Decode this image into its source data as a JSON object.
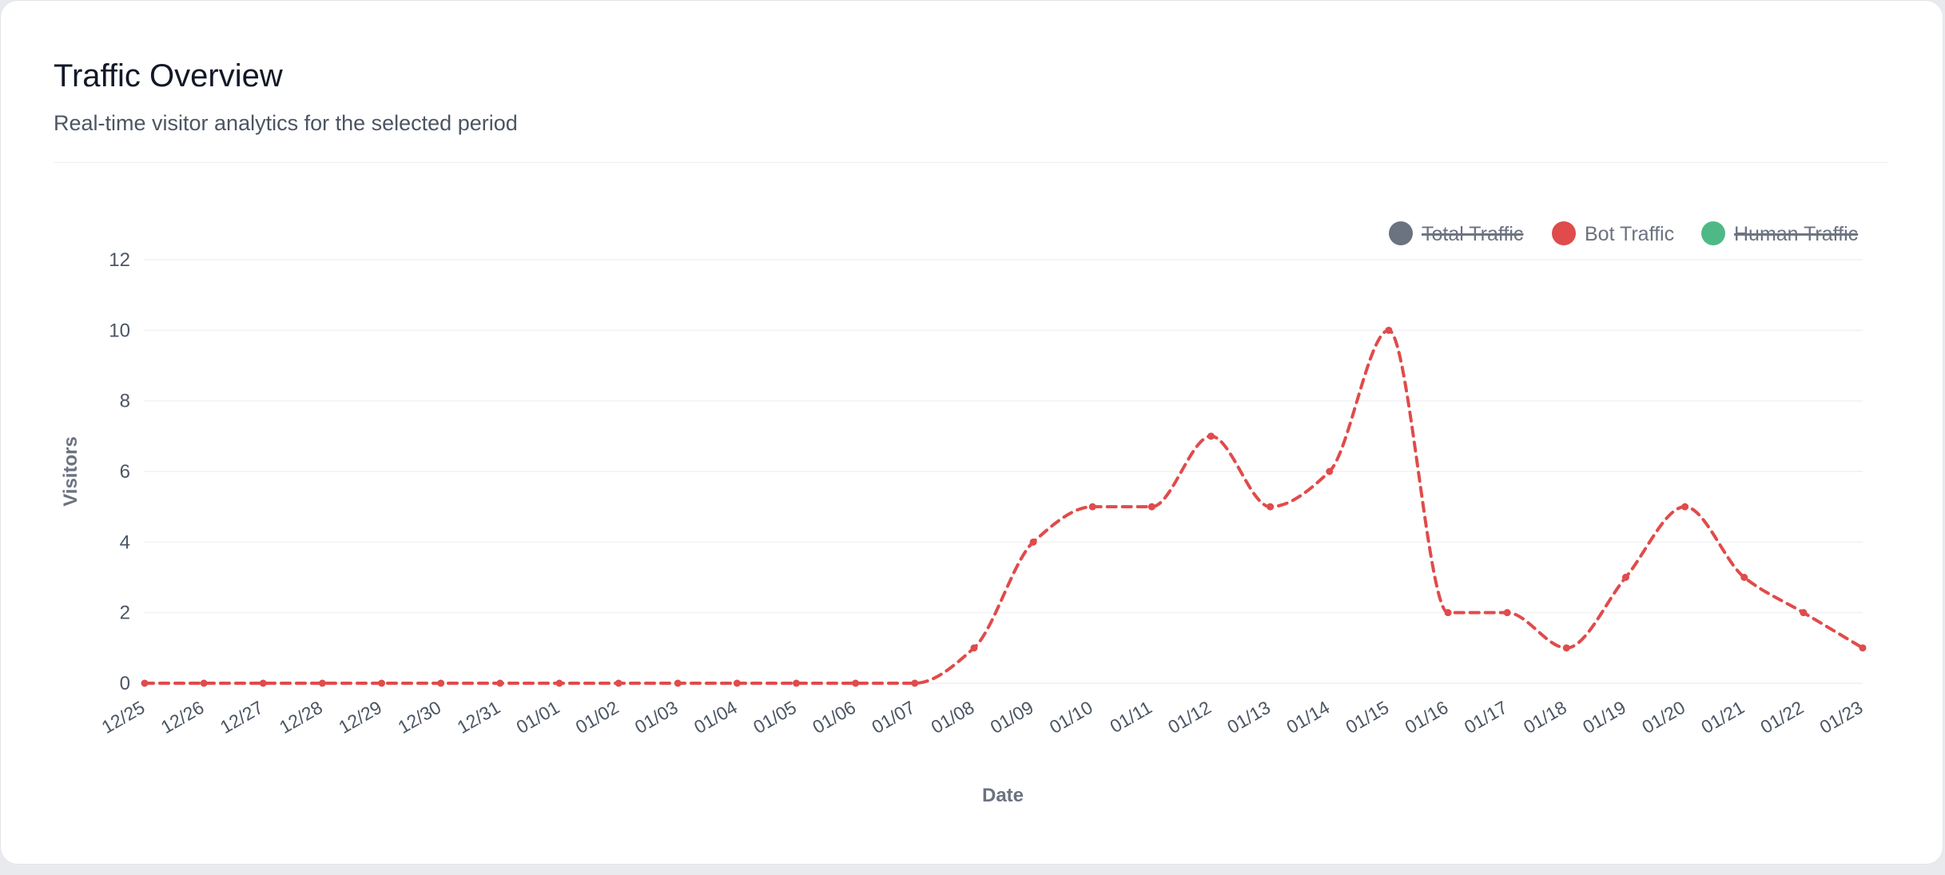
{
  "header": {
    "title": "Traffic Overview",
    "subtitle": "Real-time visitor analytics for the selected period"
  },
  "legend": [
    {
      "label": "Total Traffic",
      "color": "#6b7280",
      "hidden": true
    },
    {
      "label": "Bot Traffic",
      "color": "#e04b4b",
      "hidden": false
    },
    {
      "label": "Human Traffic",
      "color": "#4fb985",
      "hidden": true
    }
  ],
  "chart_data": {
    "type": "line",
    "xlabel": "Date",
    "ylabel": "Visitors",
    "ylim": [
      0,
      12
    ],
    "yticks": [
      0,
      2,
      4,
      6,
      8,
      10,
      12
    ],
    "grid": true,
    "legend_position": "top-right",
    "categories": [
      "12/25",
      "12/26",
      "12/27",
      "12/28",
      "12/29",
      "12/30",
      "12/31",
      "01/01",
      "01/02",
      "01/03",
      "01/04",
      "01/05",
      "01/06",
      "01/07",
      "01/08",
      "01/09",
      "01/10",
      "01/11",
      "01/12",
      "01/13",
      "01/14",
      "01/15",
      "01/16",
      "01/17",
      "01/18",
      "01/19",
      "01/20",
      "01/21",
      "01/22",
      "01/23"
    ],
    "series": [
      {
        "name": "Bot Traffic",
        "color": "#e04b4b",
        "style": "dashed",
        "visible": true,
        "values": [
          0,
          0,
          0,
          0,
          0,
          0,
          0,
          0,
          0,
          0,
          0,
          0,
          0,
          0,
          1,
          4,
          5,
          5,
          7,
          5,
          6,
          10,
          2,
          2,
          1,
          3,
          5,
          3,
          2,
          1
        ]
      }
    ]
  }
}
